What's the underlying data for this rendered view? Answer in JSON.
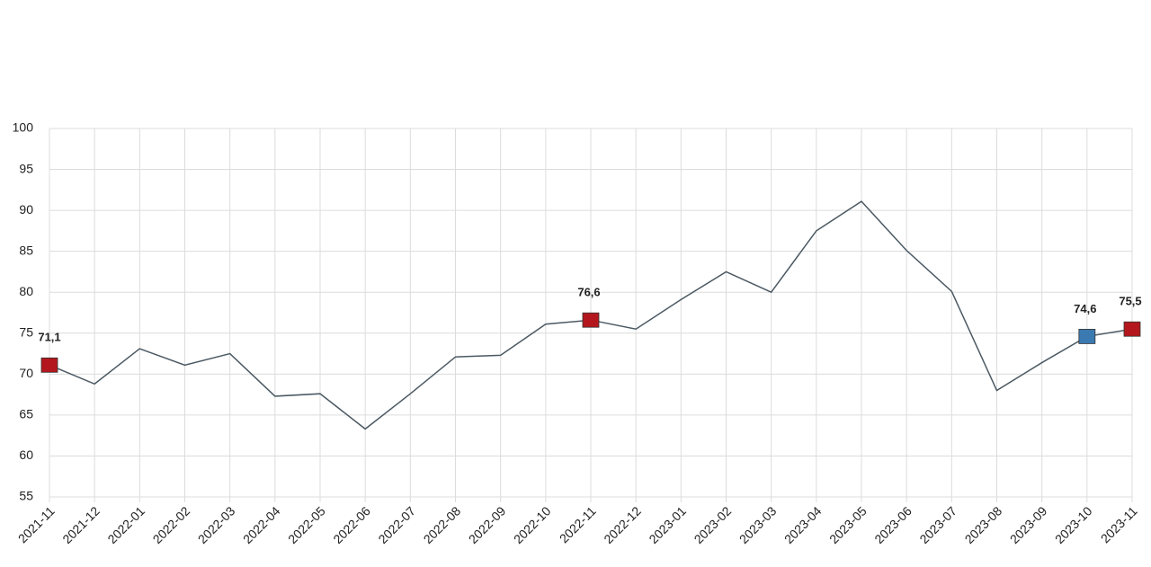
{
  "chart_data": {
    "type": "line",
    "categories": [
      "2021-11",
      "2021-12",
      "2022-01",
      "2022-02",
      "2022-03",
      "2022-04",
      "2022-05",
      "2022-06",
      "2022-07",
      "2022-08",
      "2022-09",
      "2022-10",
      "2022-11",
      "2022-12",
      "2023-01",
      "2023-02",
      "2023-03",
      "2023-04",
      "2023-05",
      "2023-06",
      "2023-07",
      "2023-08",
      "2023-09",
      "2023-10",
      "2023-11"
    ],
    "series": [
      {
        "color": "#4b5963",
        "values": [
          71.1,
          68.8,
          73.1,
          71.1,
          72.5,
          67.3,
          67.6,
          63.3,
          67.6,
          72.1,
          72.3,
          76.1,
          76.6,
          75.5,
          79.1,
          82.5,
          80.0,
          87.5,
          91.1,
          85.1,
          80.1,
          68.0,
          71.4,
          74.6,
          75.5
        ],
        "value_labels": [
          "71,1",
          null,
          null,
          null,
          null,
          null,
          null,
          null,
          null,
          null,
          null,
          null,
          "76,6",
          null,
          null,
          null,
          null,
          null,
          null,
          null,
          null,
          null,
          null,
          "74,6",
          "75,5"
        ],
        "marker_colors": [
          "#b3171d",
          null,
          null,
          null,
          null,
          null,
          null,
          null,
          null,
          null,
          null,
          null,
          "#b3171d",
          null,
          null,
          null,
          null,
          null,
          null,
          null,
          null,
          null,
          null,
          "#3b79b1",
          "#b3171d"
        ]
      }
    ],
    "ylim": [
      55,
      100
    ],
    "yticks": [
      55,
      60,
      65,
      70,
      75,
      80,
      85,
      90,
      95,
      100
    ],
    "grid": true
  }
}
